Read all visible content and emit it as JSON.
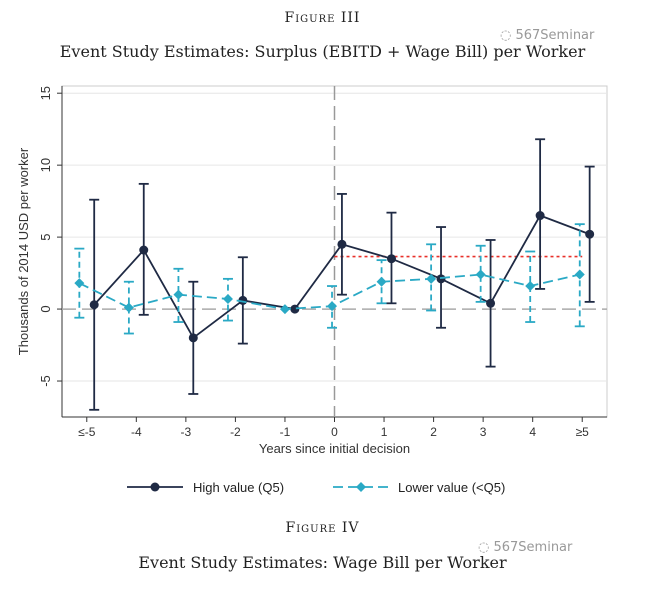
{
  "figure_top": {
    "label": "Figure III",
    "title": "Event Study Estimates: Surplus (EBITD + Wage Bill) per Worker"
  },
  "figure_bottom": {
    "label": "Figure IV",
    "title": "Event Study Estimates: Wage Bill per Worker"
  },
  "watermark": "567Seminar",
  "colors": {
    "high": "#1f2a44",
    "lower": "#2aa9c5",
    "reference": "#e8302a",
    "zero_line": "#aaaaaa",
    "grid": "#e6e6e6"
  },
  "chart_data": {
    "type": "line",
    "title": "Event Study Estimates: Surplus (EBITD + Wage Bill) per Worker",
    "xlabel": "Years since initial decision",
    "ylabel": "Thousands of 2014 USD per worker",
    "categories": [
      "≤-5",
      "-4",
      "-3",
      "-2",
      "-1",
      "0",
      "1",
      "2",
      "3",
      "4",
      "≥5"
    ],
    "x": [
      -5,
      -4,
      -3,
      -2,
      -1,
      0,
      1,
      2,
      3,
      4,
      5
    ],
    "ylim": [
      -7.5,
      15.5
    ],
    "yticks": [
      -5,
      0,
      5,
      10,
      15
    ],
    "grid": true,
    "event_line_x": 0,
    "zero_line_y": 0,
    "legend_position": "bottom",
    "series": [
      {
        "name": "High value (Q5)",
        "style": "solid-circle",
        "x": [
          -4.85,
          -3.85,
          -2.85,
          -1.85,
          -0.8,
          0.15,
          1.15,
          2.15,
          3.15,
          4.15,
          5.15
        ],
        "values": [
          0.3,
          4.1,
          -2.0,
          0.6,
          0.0,
          4.5,
          3.5,
          2.1,
          0.4,
          6.5,
          5.2
        ],
        "ci_low": [
          -7.0,
          -0.4,
          -5.9,
          -2.4,
          null,
          1.0,
          0.4,
          -1.3,
          -4.0,
          1.4,
          0.5
        ],
        "ci_high": [
          7.6,
          8.7,
          1.9,
          3.6,
          null,
          8.0,
          6.7,
          5.7,
          4.8,
          11.8,
          9.9
        ]
      },
      {
        "name": "Lower value (<Q5)",
        "style": "dashed-diamond",
        "x": [
          -5.15,
          -4.15,
          -3.15,
          -2.15,
          -1.0,
          -0.05,
          0.95,
          1.95,
          2.95,
          3.95,
          4.95
        ],
        "values": [
          1.8,
          0.1,
          1.0,
          0.7,
          0.0,
          0.2,
          1.9,
          2.1,
          2.4,
          1.6,
          2.4
        ],
        "ci_low": [
          -0.6,
          -1.7,
          -0.9,
          -0.8,
          null,
          -1.3,
          0.4,
          -0.1,
          0.5,
          -0.9,
          -1.2
        ],
        "ci_high": [
          4.2,
          1.9,
          2.8,
          2.1,
          null,
          1.6,
          3.4,
          4.5,
          4.4,
          4.0,
          5.9
        ]
      }
    ],
    "reference_line": {
      "y": 3.65,
      "x_from": 0,
      "x_to": 5
    }
  }
}
